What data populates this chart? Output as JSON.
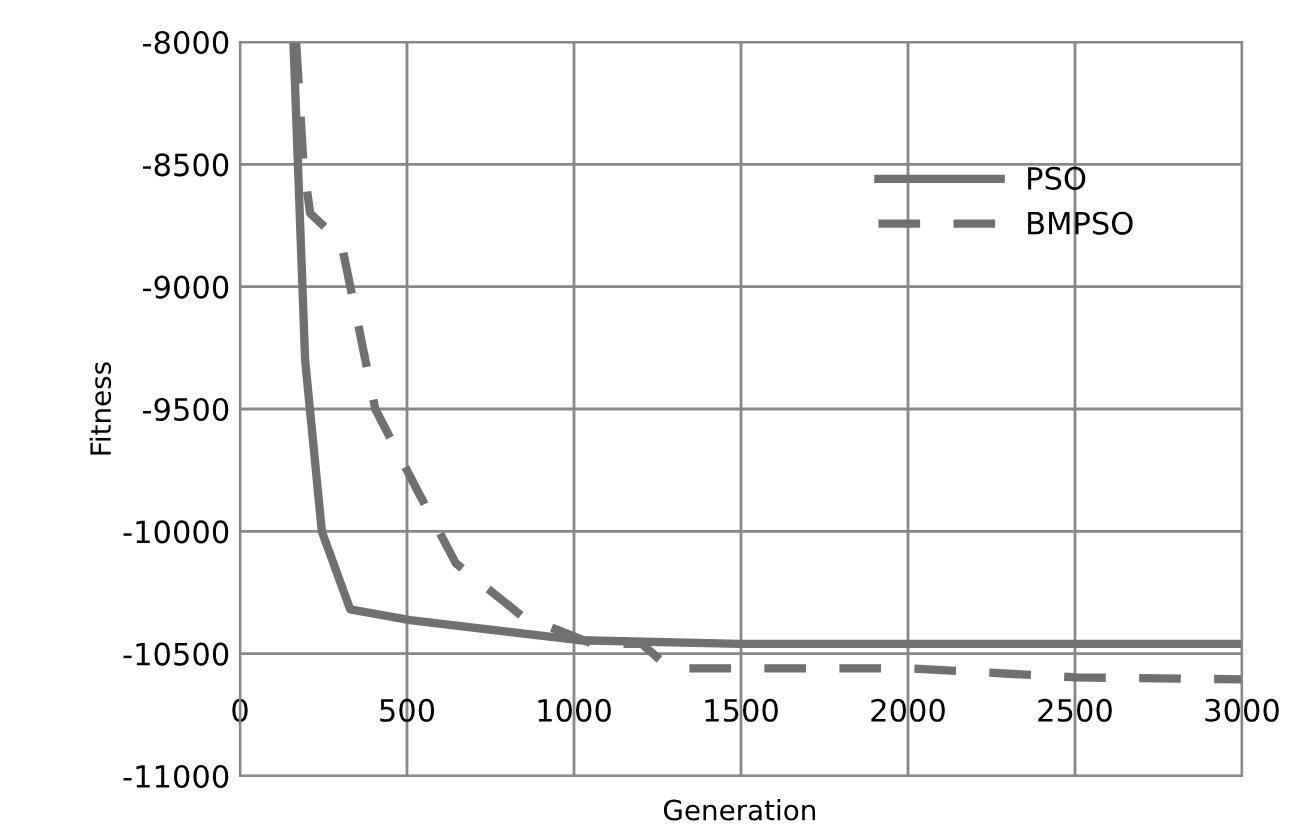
{
  "chart_data": {
    "type": "line",
    "xlabel": "Generation",
    "ylabel": "Fitness",
    "xlim": [
      0,
      3000
    ],
    "xticks": [
      0,
      500,
      1000,
      1500,
      2000,
      2500,
      3000
    ],
    "ylim": [
      -11000,
      -8000
    ],
    "yticks": [
      -11000,
      -10500,
      -10000,
      -9500,
      -9000,
      -8500,
      -8000
    ],
    "grid": true,
    "legend": "right",
    "series": [
      {
        "name": "PSO",
        "color": "#707070",
        "line_style": "solid",
        "x": [
          160,
          195,
          245,
          330,
          509,
          1015,
          1497,
          3000
        ],
        "values": [
          -8000,
          -9300,
          -10000,
          -10319,
          -10363,
          -10445,
          -10460,
          -10460
        ]
      },
      {
        "name": "BMPSO",
        "color": "#707070",
        "line_style": "dashed",
        "x": [
          168,
          190,
          210,
          303,
          353,
          405,
          530,
          646,
          843,
          1056,
          1203,
          1287,
          2000,
          2505,
          3000
        ],
        "values": [
          -8000,
          -8500,
          -8700,
          -8820,
          -9150,
          -9500,
          -9830,
          -10130,
          -10345,
          -10460,
          -10460,
          -10560,
          -10560,
          -10597,
          -10605
        ]
      }
    ]
  }
}
